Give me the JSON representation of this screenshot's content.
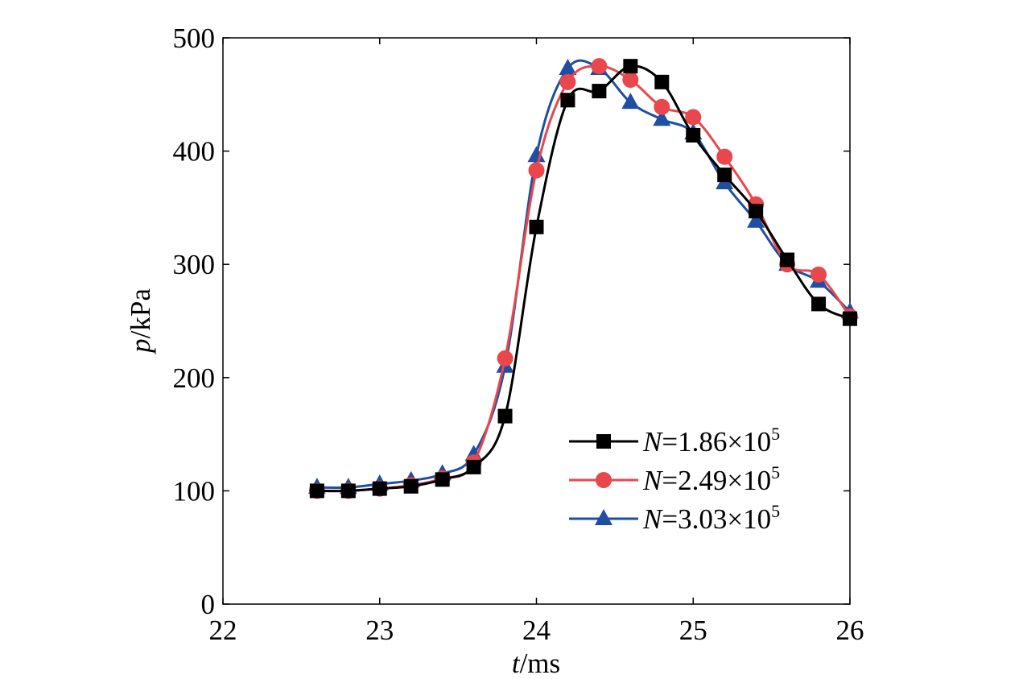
{
  "chart_data": {
    "type": "line",
    "xlabel": {
      "var": "t",
      "unit": "/ms"
    },
    "ylabel": {
      "var": "p",
      "unit": "/kPa"
    },
    "xlim": [
      22,
      26
    ],
    "ylim": [
      0,
      500
    ],
    "xticks": [
      "22",
      "23",
      "24",
      "25",
      "26"
    ],
    "yticks": [
      "0",
      "100",
      "200",
      "300",
      "400",
      "500"
    ],
    "grid": false,
    "legend_position": "lower-right",
    "series": [
      {
        "name": {
          "var": "N",
          "mantissa": "=1.86×10",
          "exp": "5"
        },
        "color": "#000000",
        "marker": "square",
        "x": [
          22.6,
          22.8,
          23.0,
          23.2,
          23.4,
          23.6,
          23.8,
          24.0,
          24.2,
          24.4,
          24.6,
          24.8,
          25.0,
          25.2,
          25.4,
          25.6,
          25.8,
          26.0
        ],
        "y": [
          100,
          100,
          102,
          104,
          110,
          121,
          166,
          333,
          445,
          453,
          475,
          461,
          414,
          379,
          347,
          304,
          265,
          252
        ]
      },
      {
        "name": {
          "var": "N",
          "mantissa": "=2.49×10",
          "exp": "5"
        },
        "color": "#e8474c",
        "marker": "circle",
        "x": [
          22.6,
          22.8,
          23.0,
          23.2,
          23.4,
          23.6,
          23.8,
          24.0,
          24.2,
          24.4,
          24.6,
          24.8,
          25.0,
          25.2,
          25.4,
          25.6,
          25.8,
          26.0
        ],
        "y": [
          100,
          100,
          102,
          105,
          111,
          125,
          217,
          383,
          461,
          475,
          463,
          439,
          430,
          395,
          353,
          300,
          291,
          254
        ]
      },
      {
        "name": {
          "var": "N",
          "mantissa": "=3.03×10",
          "exp": "5"
        },
        "color": "#1f4ea3",
        "marker": "triangle",
        "x": [
          22.6,
          22.8,
          23.0,
          23.2,
          23.4,
          23.6,
          23.8,
          24.0,
          24.2,
          24.4,
          24.6,
          24.8,
          25.0,
          25.2,
          25.4,
          25.6,
          25.8,
          26.0
        ],
        "y": [
          103,
          103,
          106,
          109,
          115,
          132,
          210,
          396,
          473,
          473,
          443,
          428,
          416,
          372,
          338,
          300,
          285,
          258
        ]
      }
    ]
  }
}
